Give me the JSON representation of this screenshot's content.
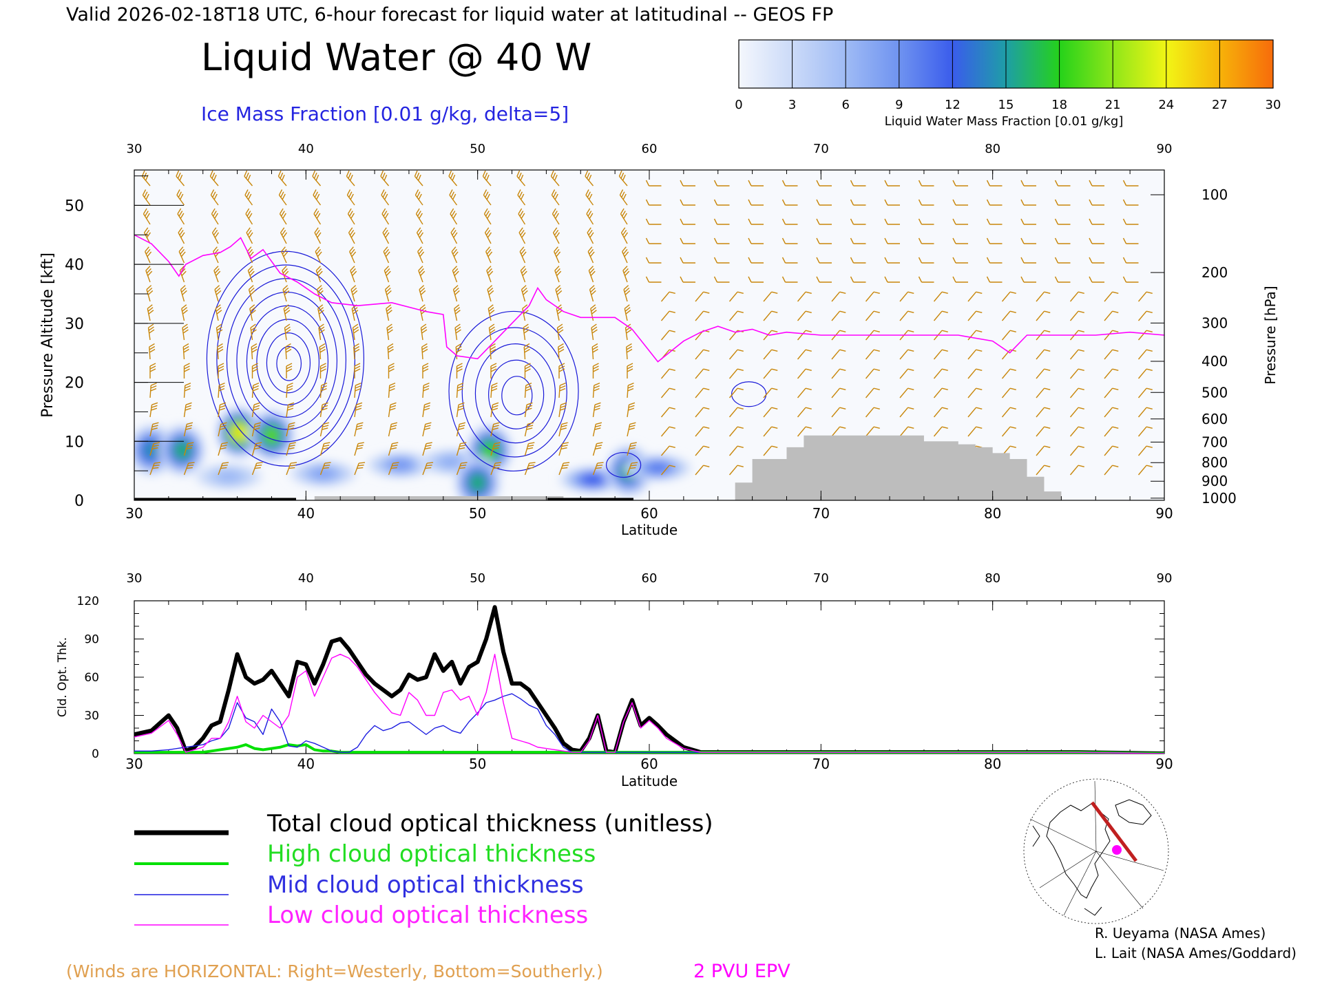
{
  "header": {
    "valid_line": "Valid 2026-02-18T18 UTC, 6-hour forecast for liquid water at latitudinal -- GEOS FP",
    "title": "Liquid Water @ 40 W",
    "subtitle": "Ice Mass Fraction [0.01 g/kg, delta=5]"
  },
  "colorbar": {
    "ticks": [
      "0",
      "3",
      "6",
      "9",
      "12",
      "15",
      "18",
      "21",
      "24",
      "27",
      "30"
    ],
    "label": "Liquid Water Mass Fraction [0.01 g/kg]",
    "colors": [
      "#f4f7fd",
      "#cbdaf8",
      "#9fbbf5",
      "#6f93f0",
      "#3a5cec",
      "#1e9ea6",
      "#25d21a",
      "#8ee619",
      "#f2f515",
      "#f7b309",
      "#f76b0b"
    ]
  },
  "colors": {
    "wind_barb": "#c8860a",
    "epv_line": "#ff00ff",
    "ice_contour": "#1818d8",
    "terrain": "#bdbdbd",
    "total": "#000000",
    "high": "#00e000",
    "mid": "#1c1ce0",
    "low": "#ff00ff"
  },
  "top_panel": {
    "lat_ticks": [
      "30",
      "40",
      "50",
      "60",
      "70",
      "80",
      "90"
    ],
    "xlabel": "Latitude",
    "ylabel_left": "Pressure Altitude [kft]",
    "ylabel_right": "Pressure [hPa]",
    "y_ticks_left": [
      "0",
      "10",
      "20",
      "30",
      "40",
      "50"
    ],
    "y_ticks_right": [
      "100",
      "200",
      "300",
      "400",
      "500",
      "600",
      "700",
      "800",
      "900",
      "1000"
    ]
  },
  "bottom_panel": {
    "lat_ticks": [
      "30",
      "40",
      "50",
      "60",
      "70",
      "80",
      "90"
    ],
    "xlabel": "Latitude",
    "ylabel": "Cld. Opt. Thk.",
    "y_ticks": [
      "0",
      "30",
      "60",
      "90",
      "120"
    ]
  },
  "legend": {
    "total": "Total cloud optical thickness (unitless)",
    "high": "High cloud optical thickness",
    "mid": "Mid cloud optical thickness",
    "low": "Low cloud optical thickness"
  },
  "footer": {
    "winds_note": "(Winds are HORIZONTAL: Right=Westerly, Bottom=Southerly.)",
    "epv_label": "2 PVU EPV",
    "credit1": "R. Ueyama (NASA Ames)",
    "credit2": "L. Lait (NASA Ames/Goddard)"
  },
  "chart_data": [
    {
      "type": "heatmap",
      "title": "Liquid Water @ 40 W",
      "xlabel": "Latitude",
      "ylabel": "Pressure Altitude [kft]",
      "xlim": [
        30,
        90
      ],
      "ylim": [
        0,
        56
      ],
      "liquid_water_blobs": [
        {
          "lat": 31,
          "alt": 8.5,
          "peak": 15
        },
        {
          "lat": 32.8,
          "alt": 8.5,
          "peak": 17
        },
        {
          "lat": 36.1,
          "alt": 11.5,
          "peak": 27
        },
        {
          "lat": 38,
          "alt": 11,
          "peak": 21
        },
        {
          "lat": 35.5,
          "alt": 4,
          "peak": 5
        },
        {
          "lat": 41,
          "alt": 4.5,
          "peak": 7
        },
        {
          "lat": 45.5,
          "alt": 6,
          "peak": 8
        },
        {
          "lat": 48.5,
          "alt": 6.5,
          "peak": 6
        },
        {
          "lat": 50.7,
          "alt": 8.5,
          "peak": 20
        },
        {
          "lat": 50,
          "alt": 3,
          "peak": 17
        },
        {
          "lat": 56.7,
          "alt": 3.5,
          "peak": 12
        },
        {
          "lat": 58.8,
          "alt": 5,
          "peak": 17
        },
        {
          "lat": 60.5,
          "alt": 5.5,
          "peak": 10
        }
      ],
      "ice_contour_centers": [
        {
          "lat": 38.8,
          "alt": 24,
          "max_level": 40
        },
        {
          "lat": 52.1,
          "alt": 18.5,
          "max_level": 25
        },
        {
          "lat": 58.5,
          "alt": 6,
          "max_level": 5
        },
        {
          "lat": 65.8,
          "alt": 18,
          "max_level": 5
        }
      ],
      "epv_2pvu_altitude": {
        "lat": [
          30,
          31,
          32,
          32.6,
          33,
          34,
          35,
          35.6,
          36.2,
          36.8,
          37.5,
          38.5,
          39.5,
          40.5,
          41.5,
          43,
          45,
          47,
          48,
          48.2,
          48.8,
          50,
          51,
          52,
          53,
          53.5,
          54,
          55,
          56,
          58,
          59,
          60.5,
          62,
          63,
          64,
          65,
          66,
          67,
          68,
          70,
          72,
          74,
          76,
          78,
          80,
          81,
          82,
          84,
          86,
          88,
          90
        ],
        "alt": [
          45,
          43.5,
          40.5,
          38,
          40,
          41.5,
          42,
          43,
          44.5,
          41,
          42.5,
          38.5,
          37,
          35,
          33.5,
          33,
          33.5,
          32,
          31.5,
          26,
          24.5,
          24,
          27,
          30,
          33,
          36,
          34,
          32,
          31,
          31,
          29,
          23.5,
          27,
          28.5,
          29.5,
          28.5,
          29,
          28,
          28.5,
          28,
          28,
          28,
          28,
          28,
          27,
          25,
          28,
          28,
          28,
          28.5,
          28
        ]
      },
      "terrain_altitude": {
        "lat": [
          30,
          39.5,
          40.5,
          49.5,
          50.5,
          52,
          54,
          55,
          64,
          65,
          65.5,
          66,
          67,
          68,
          69,
          70,
          71,
          72,
          73,
          74,
          75,
          76,
          77,
          78,
          79,
          80,
          81,
          82,
          83,
          84,
          90
        ],
        "alt": [
          0,
          0,
          0.7,
          0.7,
          0.7,
          0.7,
          0.7,
          0,
          0,
          3,
          3,
          7,
          7,
          9,
          11,
          11,
          11,
          11,
          11,
          11,
          11,
          10,
          10,
          9.5,
          9,
          8,
          7,
          4,
          1.5,
          0,
          0
        ]
      }
    },
    {
      "type": "line",
      "xlabel": "Latitude",
      "ylabel": "Cld. Opt. Thk.",
      "xlim": [
        30,
        90
      ],
      "ylim": [
        0,
        120
      ],
      "x": [
        30,
        31,
        32,
        32.5,
        33,
        33.5,
        34,
        34.5,
        35,
        35.5,
        36,
        36.5,
        37,
        37.5,
        38,
        38.5,
        39,
        39.5,
        40,
        40.5,
        41,
        41.5,
        42,
        42.5,
        43,
        43.5,
        44,
        44.5,
        45,
        45.5,
        46,
        46.5,
        47,
        47.5,
        48,
        48.5,
        49,
        49.5,
        50,
        50.5,
        51,
        51.5,
        52,
        52.5,
        53,
        53.5,
        54,
        54.5,
        55,
        55.5,
        56,
        56.5,
        57,
        57.5,
        58,
        58.5,
        59,
        59.5,
        60,
        60.5,
        61,
        62,
        63,
        65,
        70,
        75,
        80,
        85,
        90
      ],
      "series": [
        {
          "name": "Total cloud optical thickness (unitless)",
          "values": [
            15,
            18,
            30,
            20,
            2,
            5,
            12,
            22,
            25,
            50,
            78,
            60,
            55,
            58,
            65,
            55,
            45,
            72,
            70,
            55,
            70,
            88,
            90,
            82,
            72,
            62,
            55,
            50,
            45,
            50,
            62,
            58,
            60,
            78,
            65,
            72,
            55,
            68,
            72,
            90,
            115,
            80,
            55,
            55,
            50,
            40,
            30,
            20,
            8,
            3,
            2,
            12,
            30,
            2,
            1,
            25,
            42,
            22,
            28,
            22,
            15,
            5,
            1,
            1,
            1,
            1,
            1,
            1,
            0
          ]
        },
        {
          "name": "High cloud optical thickness",
          "values": [
            1,
            1,
            1,
            1,
            1,
            1,
            1,
            2,
            3,
            4,
            5,
            7,
            4,
            3,
            4,
            5,
            7,
            6,
            7,
            3,
            2,
            2,
            1,
            1,
            1,
            1,
            1,
            1,
            1,
            1,
            1,
            1,
            1,
            1,
            1,
            1,
            1,
            1,
            1,
            1,
            1,
            1,
            1,
            1,
            1,
            1,
            1,
            1,
            1,
            1,
            1,
            1,
            1,
            1,
            1,
            1,
            1,
            1,
            1,
            1,
            1,
            1,
            1,
            1,
            1,
            1,
            1,
            1,
            0
          ]
        },
        {
          "name": "Mid cloud optical thickness",
          "values": [
            2,
            2,
            3,
            4,
            5,
            6,
            7,
            10,
            12,
            20,
            40,
            28,
            25,
            15,
            35,
            25,
            6,
            5,
            10,
            8,
            5,
            2,
            1,
            1,
            5,
            15,
            22,
            18,
            20,
            24,
            25,
            20,
            15,
            20,
            22,
            18,
            16,
            25,
            32,
            40,
            42,
            45,
            47,
            43,
            38,
            35,
            22,
            15,
            5,
            1,
            1,
            1,
            1,
            1,
            1,
            1,
            1,
            1,
            1,
            1,
            1,
            1,
            1,
            1,
            1,
            1,
            1,
            1,
            0
          ]
        },
        {
          "name": "Low cloud optical thickness",
          "values": [
            13,
            16,
            26,
            15,
            1,
            3,
            5,
            12,
            12,
            25,
            45,
            25,
            20,
            30,
            25,
            20,
            30,
            60,
            65,
            45,
            60,
            75,
            78,
            75,
            68,
            58,
            48,
            40,
            32,
            30,
            48,
            42,
            30,
            30,
            48,
            50,
            42,
            45,
            30,
            48,
            78,
            40,
            12,
            10,
            8,
            5,
            4,
            3,
            2,
            1,
            1,
            10,
            30,
            1,
            1,
            25,
            40,
            20,
            26,
            20,
            12,
            4,
            1,
            1,
            1,
            1,
            1,
            1,
            0
          ]
        }
      ]
    }
  ]
}
